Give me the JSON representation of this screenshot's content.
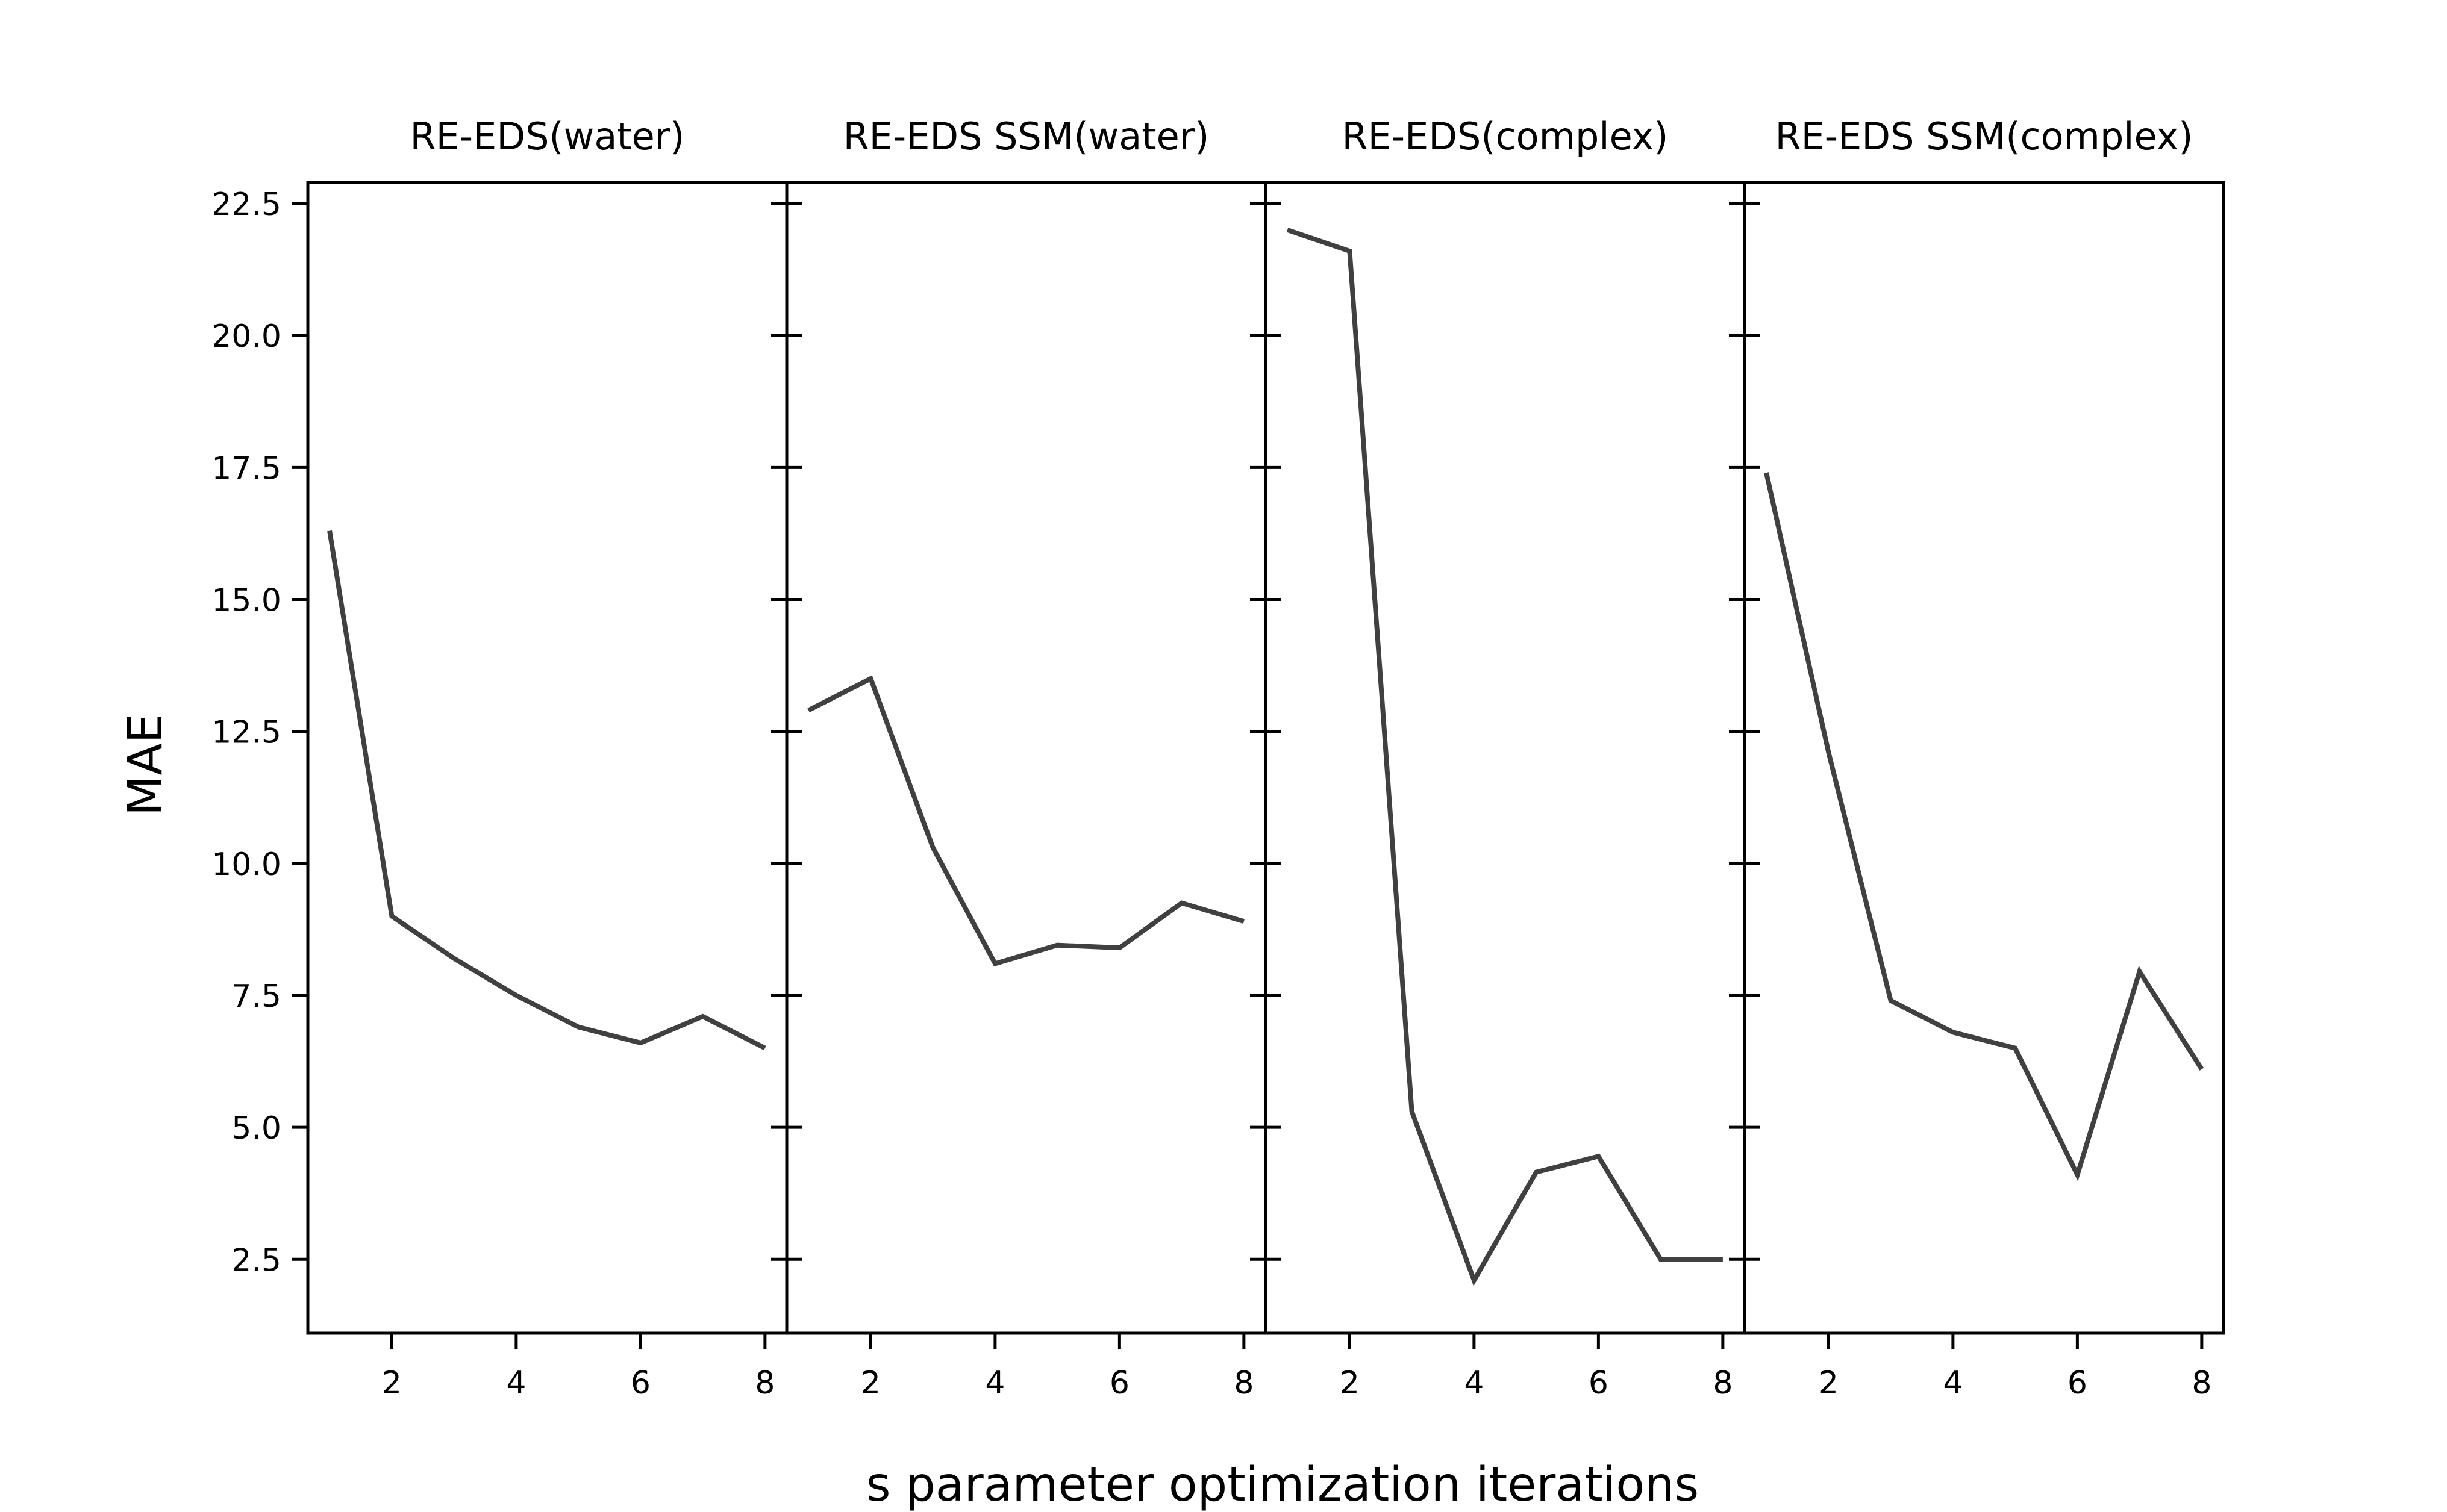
{
  "chart_data": [
    {
      "type": "line",
      "title": "RE-EDS(water)",
      "x": [
        1,
        2,
        3,
        4,
        5,
        6,
        7,
        8
      ],
      "y": [
        16.3,
        9.0,
        8.2,
        7.5,
        6.9,
        6.6,
        7.1,
        6.5
      ],
      "xticks": [
        2,
        4,
        6,
        8
      ],
      "xlim": [
        0.65,
        8.35
      ],
      "ylim": [
        1.1,
        22.9
      ],
      "yticks": [
        "22.5",
        "20.0",
        "17.5",
        "15.0",
        "12.5",
        "10.0",
        "7.5",
        "5.0",
        "2.5"
      ]
    },
    {
      "type": "line",
      "title": "RE-EDS SSM(water)",
      "x": [
        1,
        2,
        3,
        4,
        5,
        6,
        7,
        8
      ],
      "y": [
        12.9,
        13.5,
        10.3,
        8.1,
        8.45,
        8.4,
        9.25,
        8.9
      ],
      "xticks": [
        2,
        4,
        6,
        8
      ],
      "xlim": [
        0.65,
        8.35
      ],
      "ylim": [
        1.1,
        22.9
      ]
    },
    {
      "type": "line",
      "title": "RE-EDS(complex)",
      "x": [
        1,
        2,
        3,
        4,
        5,
        6,
        7,
        8
      ],
      "y": [
        22.0,
        21.6,
        5.3,
        2.1,
        4.15,
        4.45,
        2.5,
        2.5
      ],
      "xticks": [
        2,
        4,
        6,
        8
      ],
      "xlim": [
        0.65,
        8.35
      ],
      "ylim": [
        1.1,
        22.9
      ]
    },
    {
      "type": "line",
      "title": "RE-EDS SSM(complex)",
      "x": [
        1,
        2,
        3,
        4,
        5,
        6,
        7,
        8
      ],
      "y": [
        17.4,
        12.1,
        7.4,
        6.8,
        6.5,
        4.1,
        7.95,
        6.1
      ],
      "xticks": [
        2,
        4,
        6,
        8
      ],
      "xlim": [
        0.65,
        8.35
      ],
      "ylim": [
        1.1,
        22.9
      ]
    }
  ],
  "xlabel": "s parameter optimization iterations",
  "ylabel": "MAE",
  "colors": {
    "line": "#404040",
    "frame": "#000000",
    "background": "#ffffff"
  },
  "grid": false
}
